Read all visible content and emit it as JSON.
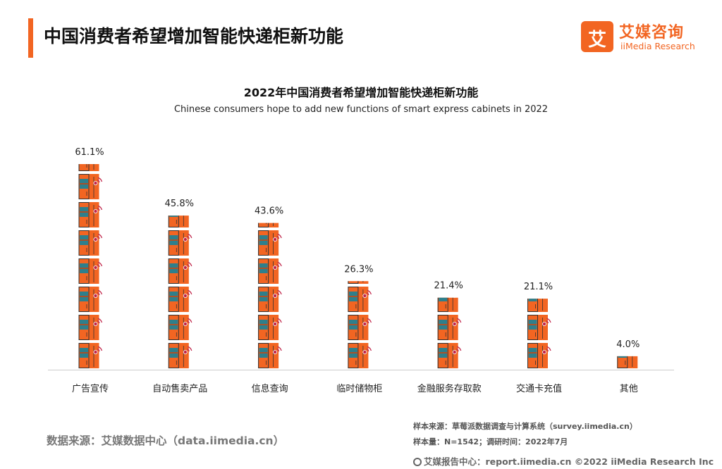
{
  "header": {
    "title": "中国消费者希望增加智能快递柜新功能"
  },
  "logo": {
    "mark": "艾",
    "name_cn": "艾媒咨询",
    "name_en": "iiMedia Research"
  },
  "colors": {
    "accent": "#f26522",
    "cabinet_teal": "#2e7f8c",
    "signal": "#c0254a",
    "axis": "#cccccc"
  },
  "chart_data": {
    "type": "bar",
    "style": "pictogram",
    "title": "2022年中国消费者希望增加智能快递柜新功能",
    "subtitle": "Chinese consumers hope to add new functions of smart express cabinets in 2022",
    "categories": [
      "广告宣传",
      "自动售卖产品",
      "信息查询",
      "临时储物柜",
      "金融服务存取款",
      "交通卡充值",
      "其他"
    ],
    "values": [
      61.1,
      45.8,
      43.6,
      26.3,
      21.4,
      21.1,
      4.0
    ],
    "value_labels": [
      "61.1%",
      "45.8%",
      "43.6%",
      "26.3%",
      "21.4%",
      "21.1%",
      "4.0%"
    ],
    "unit": "%",
    "xlabel": "",
    "ylabel": "",
    "ylim": [
      0,
      61.1
    ],
    "grid": false,
    "legend": "none"
  },
  "footer": {
    "source": "数据来源：艾媒数据中心（data.iimedia.cn）",
    "sample_source": "样本来源：草莓派数据调查与计算系统（survey.iimedia.cn）",
    "sample_info": "样本量：N=1542；调研时间：2022年7月",
    "report_line": "艾媒报告中心：report.iimedia.cn   ©2022  iiMedia Research  Inc"
  }
}
